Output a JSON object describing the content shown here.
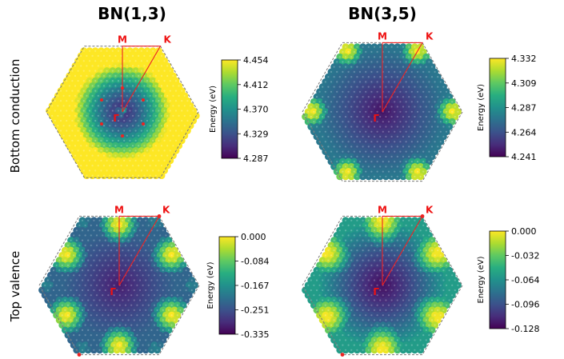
{
  "column_titles": [
    "BN(1,3)",
    "BN(3,5)"
  ],
  "row_labels": [
    "Bottom conduction",
    "Top valence"
  ],
  "colorbar_label": "Energy (eV)",
  "kpoint_labels": {
    "gamma": "Γ",
    "m": "M",
    "k": "K"
  },
  "colors": {
    "path": "#ee2222",
    "edge": "#777777"
  },
  "chart_data": [
    {
      "type": "heatmap",
      "title": "BN(1,3)",
      "row": "Bottom conduction",
      "colorscale": "viridis",
      "colorbar": {
        "label": "Energy (eV)",
        "ticks": [
          "4.454",
          "4.412",
          "4.370",
          "4.329",
          "4.287"
        ],
        "range": [
          4.287,
          4.454
        ]
      },
      "kpoints": [
        "Γ",
        "M",
        "K"
      ],
      "pattern": "ring"
    },
    {
      "type": "heatmap",
      "title": "BN(3,5)",
      "row": "Bottom conduction",
      "colorscale": "viridis",
      "colorbar": {
        "label": "Energy (eV)",
        "ticks": [
          "4.332",
          "4.309",
          "4.287",
          "4.264",
          "4.241"
        ],
        "range": [
          4.241,
          4.332
        ]
      },
      "kpoints": [
        "Γ",
        "M",
        "K"
      ],
      "pattern": "corners"
    },
    {
      "type": "heatmap",
      "title": "BN(1,3)",
      "row": "Top valence",
      "colorscale": "viridis",
      "colorbar": {
        "label": "Energy (eV)",
        "ticks": [
          "0.000",
          "-0.084",
          "-0.167",
          "-0.251",
          "-0.335"
        ],
        "range": [
          -0.335,
          0.0
        ]
      },
      "kpoints": [
        "Γ",
        "M",
        "K"
      ],
      "pattern": "edges"
    },
    {
      "type": "heatmap",
      "title": "BN(3,5)",
      "row": "Top valence",
      "colorscale": "viridis",
      "colorbar": {
        "label": "Energy (eV)",
        "ticks": [
          "0.000",
          "-0.032",
          "-0.064",
          "-0.096",
          "-0.128"
        ],
        "range": [
          -0.128,
          0.0
        ]
      },
      "kpoints": [
        "Γ",
        "M",
        "K"
      ],
      "pattern": "edges-smooth"
    }
  ]
}
